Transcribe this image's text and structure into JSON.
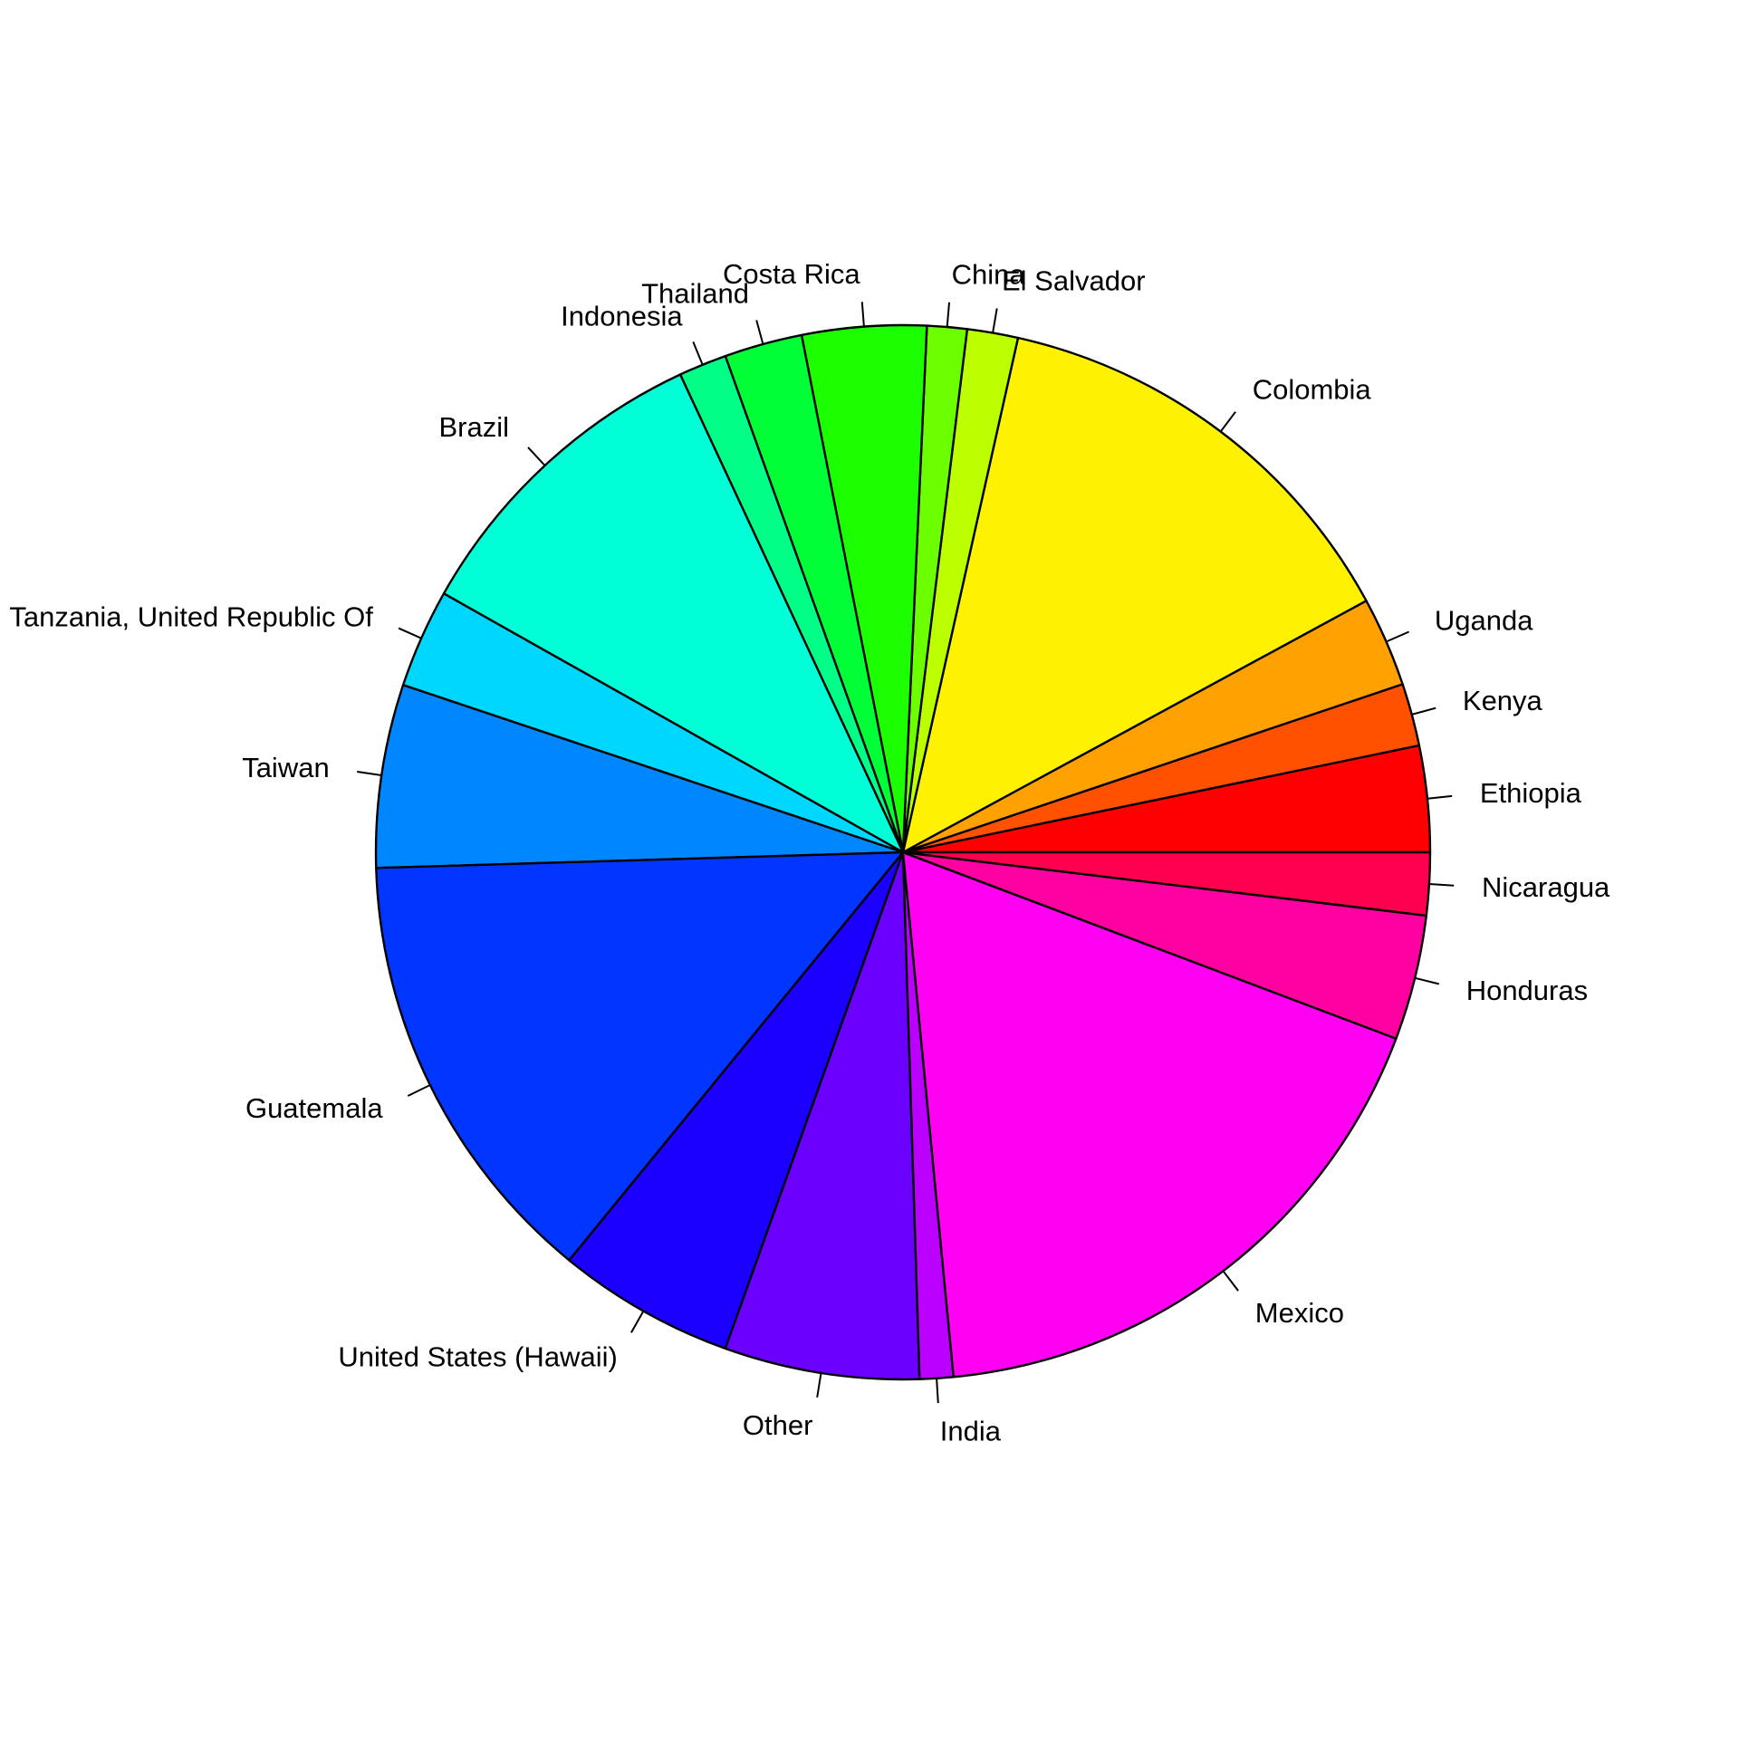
{
  "chart_data": {
    "type": "pie",
    "title": "",
    "legend_position": "none",
    "grid": false,
    "background": "#FFFFFF",
    "outline_color": "#000000",
    "direction": "counterclockwise",
    "start_angle_deg": 0,
    "slices": [
      {
        "label": "Ethiopia",
        "color": "#FF0000",
        "angle_deg": 11.7,
        "percent": 3.3
      },
      {
        "label": "Kenya",
        "color": "#FF5100",
        "angle_deg": 6.9,
        "percent": 1.9
      },
      {
        "label": "Uganda",
        "color": "#FFA100",
        "angle_deg": 9.9,
        "percent": 2.8
      },
      {
        "label": "Colombia",
        "color": "#FFF200",
        "angle_deg": 48.9,
        "percent": 13.6
      },
      {
        "label": "El Salvador",
        "color": "#BCFF00",
        "angle_deg": 5.6,
        "percent": 1.6
      },
      {
        "label": "China",
        "color": "#6BFF00",
        "angle_deg": 4.4,
        "percent": 1.2
      },
      {
        "label": "Costa Rica",
        "color": "#1BFF00",
        "angle_deg": 13.7,
        "percent": 3.8
      },
      {
        "label": "Thailand",
        "color": "#00FF36",
        "angle_deg": 8.6,
        "percent": 2.4
      },
      {
        "label": "Indonesia",
        "color": "#00FF87",
        "angle_deg": 5.3,
        "percent": 1.5
      },
      {
        "label": "Brazil",
        "color": "#00FFD7",
        "angle_deg": 35.6,
        "percent": 9.9
      },
      {
        "label": "Tanzania, United Republic Of",
        "color": "#00D7FF",
        "angle_deg": 10.9,
        "percent": 3.0
      },
      {
        "label": "Taiwan",
        "color": "#0087FF",
        "angle_deg": 20.2,
        "percent": 5.6
      },
      {
        "label": "Guatemala",
        "color": "#0036FF",
        "angle_deg": 49.0,
        "percent": 13.6
      },
      {
        "label": "United States (Hawaii)",
        "color": "#1B00FF",
        "angle_deg": 19.6,
        "percent": 5.4
      },
      {
        "label": "Other",
        "color": "#6B00FF",
        "angle_deg": 21.5,
        "percent": 6.0
      },
      {
        "label": "India",
        "color": "#BC00FF",
        "angle_deg": 3.7,
        "percent": 1.0
      },
      {
        "label": "Mexico",
        "color": "#FF00F2",
        "angle_deg": 63.8,
        "percent": 17.7
      },
      {
        "label": "Honduras",
        "color": "#FF00A1",
        "angle_deg": 13.8,
        "percent": 3.8
      },
      {
        "label": "Nicaragua",
        "color": "#FF0051",
        "angle_deg": 6.9,
        "percent": 1.9
      }
    ]
  }
}
